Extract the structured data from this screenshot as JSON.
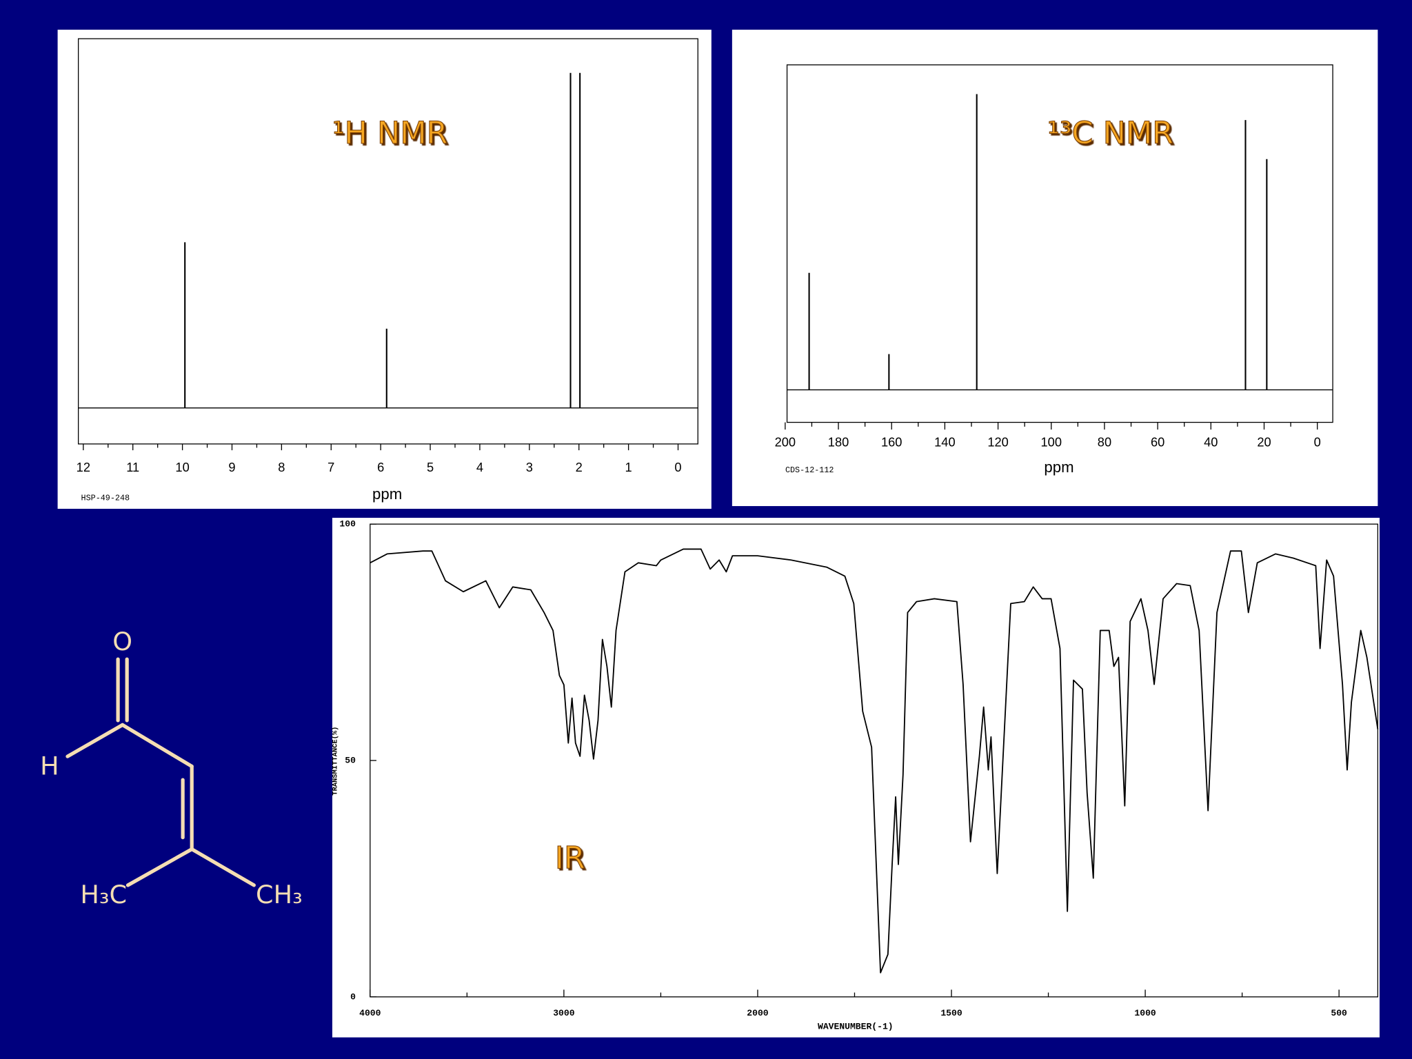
{
  "chart_data": [
    {
      "type": "stem",
      "title": "¹H NMR",
      "xlabel": "ppm",
      "code": "HSP-49-248",
      "x": [
        9.95,
        5.88,
        2.17,
        1.98
      ],
      "values": [
        46,
        22,
        93,
        93
      ],
      "xlim": [
        12.1,
        -0.4
      ],
      "ylim": [
        -10,
        102.5
      ],
      "xticks": [
        12,
        11,
        10,
        9,
        8,
        7,
        6,
        5,
        4,
        3,
        2,
        1,
        0
      ],
      "xminorticks": [
        11.5,
        10.5,
        9.5,
        8.5,
        7.5,
        6.5,
        5.5,
        4.5,
        3.5,
        2.5,
        1.5,
        0.5
      ]
    },
    {
      "type": "stem",
      "title": "¹³C NMR",
      "xlabel": "ppm",
      "code": "CDS-12-112",
      "x": [
        191,
        161,
        128,
        27,
        19
      ],
      "values": [
        36,
        11,
        91,
        83,
        71
      ],
      "xlim": [
        199.3,
        -5.8
      ],
      "ylim": [
        -10,
        100
      ],
      "xticks": [
        200,
        180,
        160,
        140,
        120,
        100,
        80,
        60,
        40,
        20,
        0
      ],
      "xminorticks": [
        190,
        170,
        150,
        130,
        110,
        90,
        70,
        50,
        30,
        10
      ]
    },
    {
      "type": "line",
      "title": "IR",
      "xlabel": "WAVENUMBER(-1)",
      "ylabel": "TRANSMITTANCE(%)",
      "x": [
        4000,
        3912,
        3727,
        3681,
        3611,
        3519,
        3403,
        3333,
        3264,
        3171,
        3102,
        3056,
        3023,
        3000,
        2977,
        2958,
        2940,
        2917,
        2894,
        2870,
        2847,
        2824,
        2801,
        2778,
        2755,
        2731,
        2685,
        2616,
        2523,
        2500,
        2384,
        2292,
        2245,
        2199,
        2162,
        2130,
        2000,
        1914,
        1822,
        1775,
        1752,
        1729,
        1706,
        1683,
        1664,
        1653,
        1644,
        1637,
        1625,
        1613,
        1590,
        1544,
        1486,
        1470,
        1451,
        1428,
        1417,
        1405,
        1398,
        1382,
        1347,
        1312,
        1289,
        1266,
        1243,
        1220,
        1201,
        1185,
        1162,
        1150,
        1134,
        1116,
        1093,
        1081,
        1069,
        1053,
        1039,
        1011,
        993,
        977,
        954,
        919,
        884,
        861,
        838,
        815,
        780,
        752,
        734,
        711,
        664,
        618,
        560,
        549,
        532,
        514,
        491,
        479,
        468,
        444,
        428,
        400
      ],
      "values": [
        91.8,
        93.7,
        94.3,
        94.3,
        88,
        85.7,
        88,
        82.3,
        86.7,
        86.1,
        81.3,
        77.5,
        68,
        66,
        53.7,
        63.2,
        53.7,
        50.9,
        63.8,
        58.5,
        50.3,
        58.5,
        75.6,
        69.9,
        61.3,
        77.5,
        89.9,
        91.8,
        91.2,
        92.4,
        94.7,
        94.7,
        90.5,
        92.4,
        89.9,
        93.3,
        93.3,
        92.4,
        90.9,
        89,
        83.2,
        60.4,
        52.8,
        5.1,
        9,
        28,
        42.3,
        28,
        47,
        81.3,
        83.6,
        84.2,
        83.6,
        66.1,
        32.8,
        50.9,
        61.3,
        48,
        55,
        26.1,
        83.2,
        83.6,
        86.7,
        84.2,
        84.2,
        73.7,
        18.1,
        67,
        65.1,
        43.2,
        25.1,
        77.5,
        77.5,
        69.9,
        71.8,
        40.4,
        79.4,
        84.2,
        77.5,
        66.1,
        84.2,
        87.4,
        87,
        77.5,
        39.4,
        81.3,
        94.3,
        94.3,
        81.3,
        91.8,
        93.7,
        92.8,
        91.2,
        73.7,
        92.4,
        89,
        66.1,
        48,
        62.3,
        77.5,
        71.8,
        56.6
      ],
      "color": "#000000",
      "xlim": [
        4000,
        400
      ],
      "ylim": [
        0,
        100
      ],
      "xticks": [
        4000,
        3000,
        2000,
        1500,
        1000,
        500
      ],
      "xminorticks": [
        3500,
        2500,
        1750,
        1250,
        750
      ],
      "yticks": [
        0,
        50,
        100
      ]
    }
  ],
  "structure": {
    "labels": [
      "O",
      "H",
      "H₃C",
      "CH₃"
    ]
  }
}
